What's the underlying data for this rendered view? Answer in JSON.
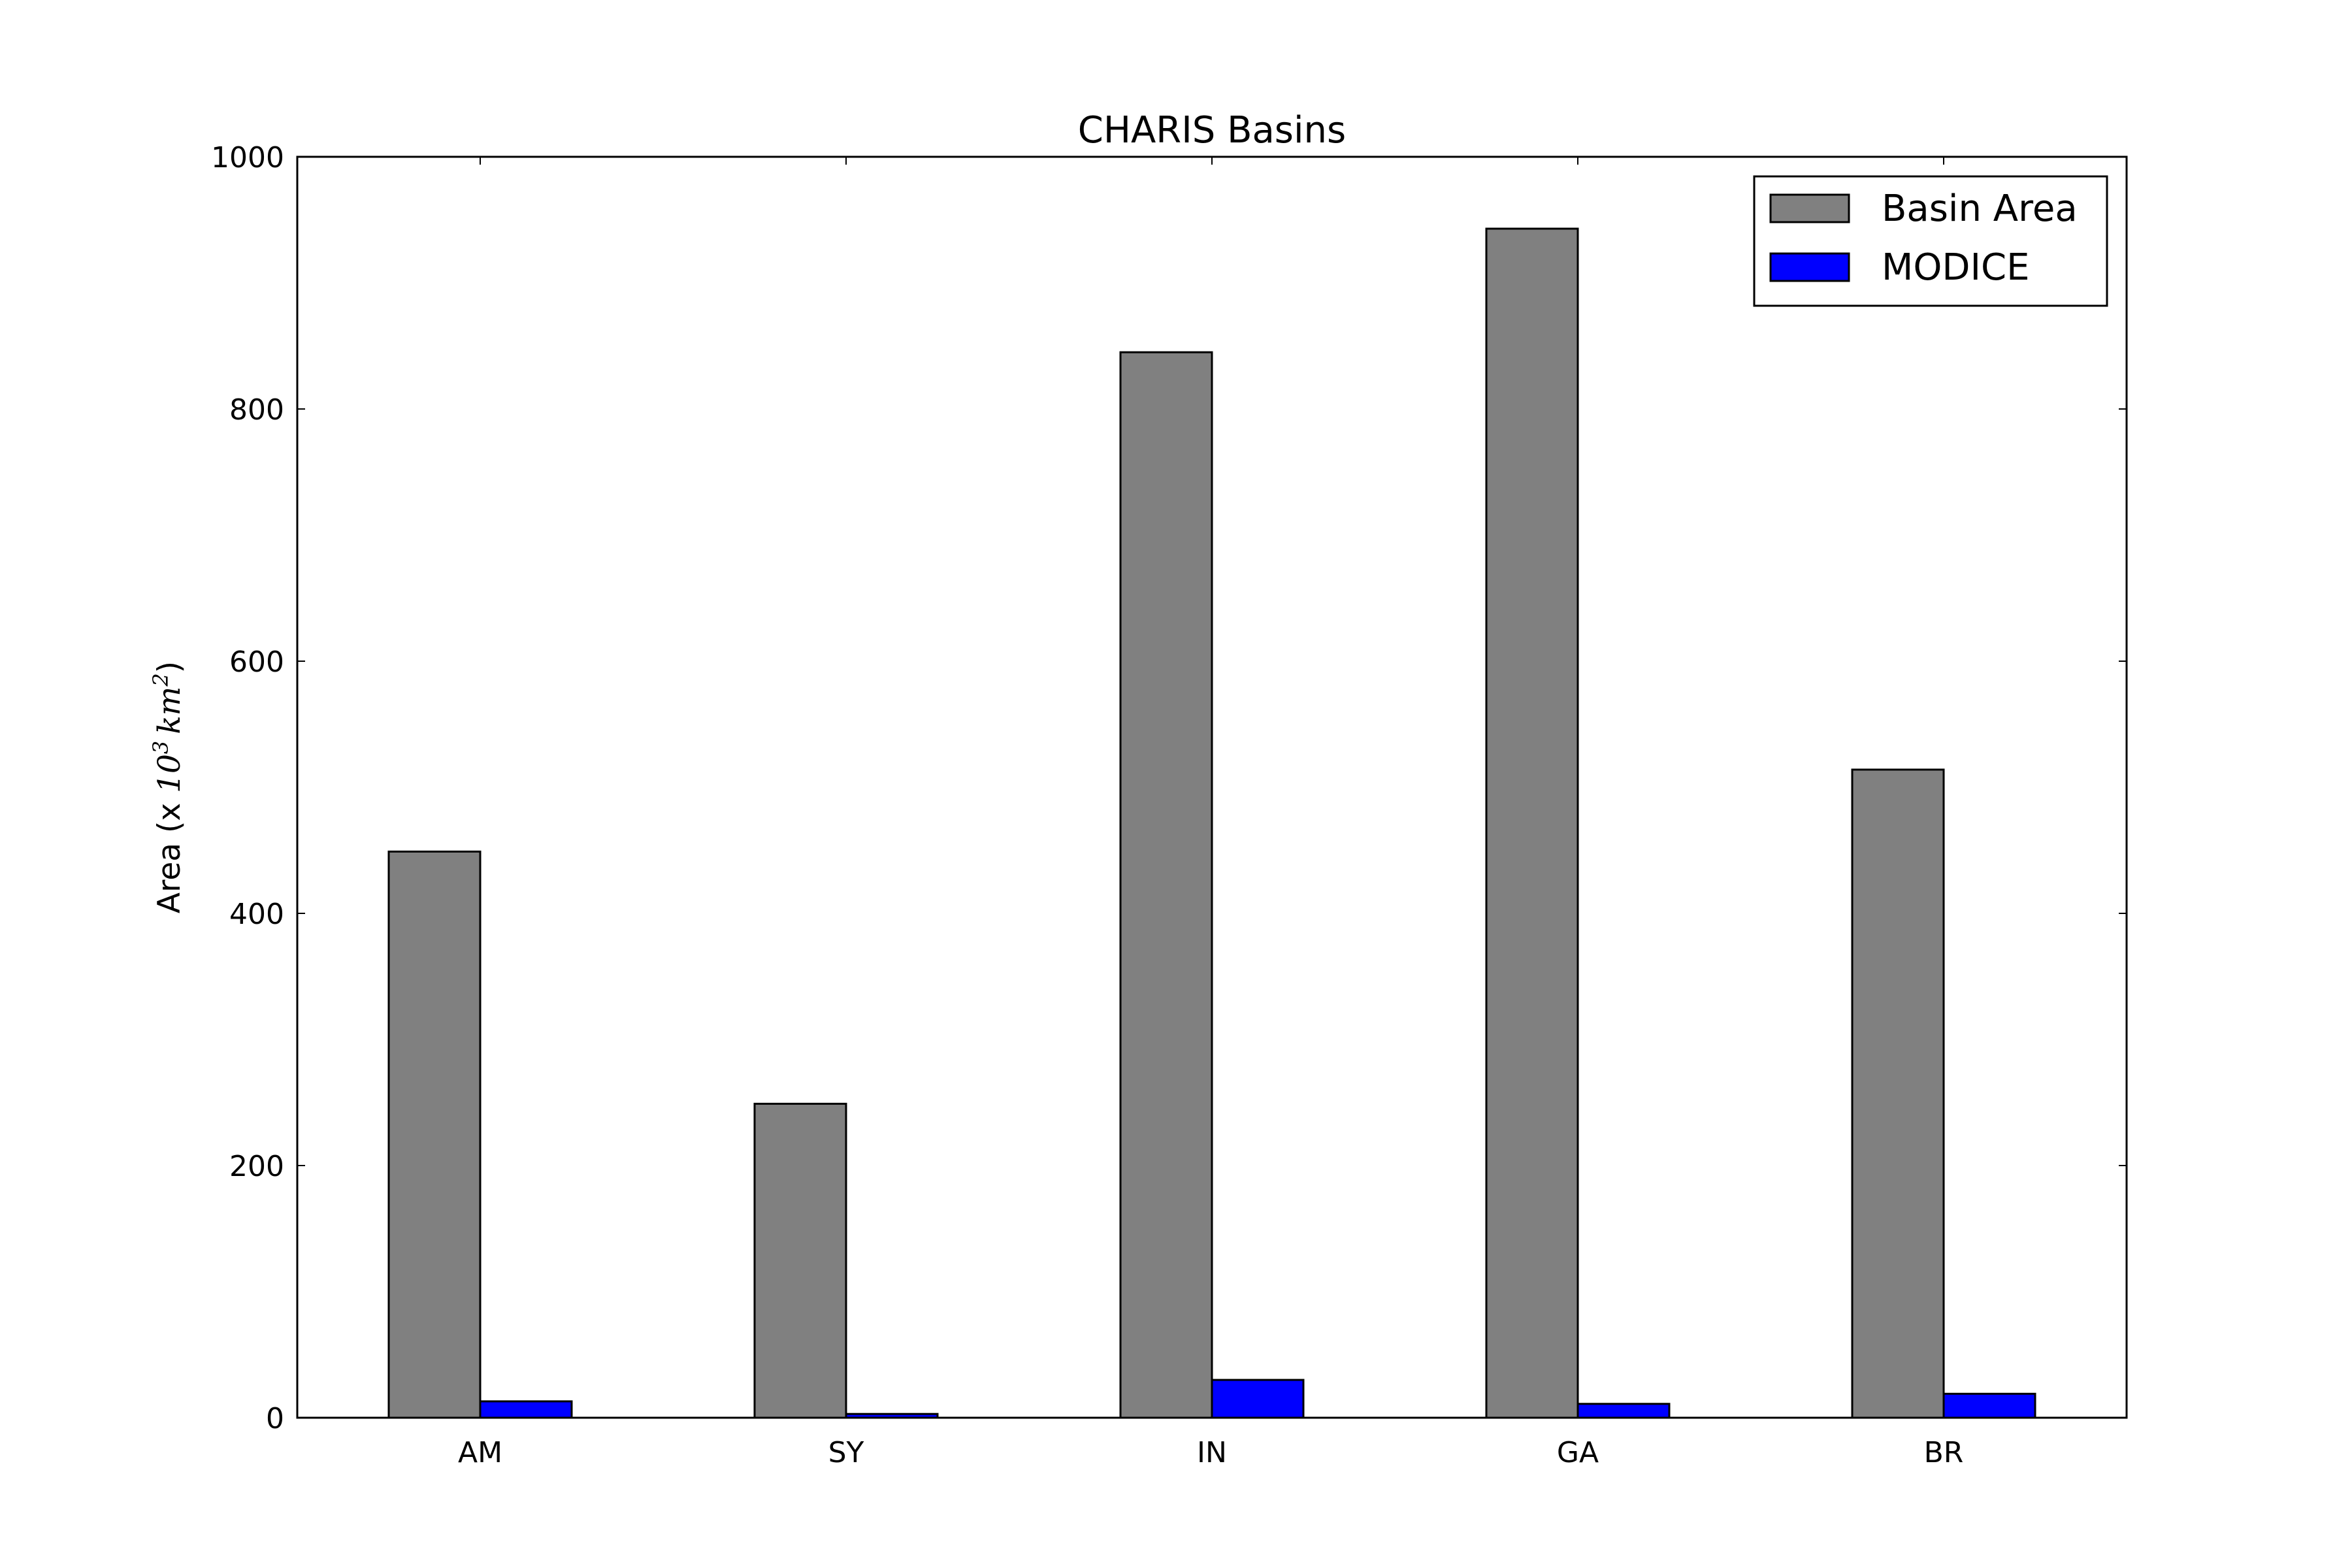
{
  "chart_data": {
    "type": "bar",
    "title": "CHARIS Basins",
    "xlabel": "",
    "ylabel": {
      "prefix": "Area (x ",
      "base": "10",
      "exp": "3",
      "unit": "km",
      "unit_exp": "2",
      "suffix": ")"
    },
    "categories": [
      "AM",
      "SY",
      "IN",
      "GA",
      "BR"
    ],
    "series": [
      {
        "name": "Basin Area",
        "color": "#808080",
        "values": [
          449,
          249,
          845,
          943,
          514
        ]
      },
      {
        "name": "MODICE",
        "color": "#0000ff",
        "values": [
          13,
          3,
          30,
          11,
          19
        ]
      }
    ],
    "ylim": [
      0,
      1000
    ],
    "yticks": [
      0,
      200,
      400,
      600,
      800,
      1000
    ],
    "grid": false,
    "legend_position": "top-right"
  }
}
